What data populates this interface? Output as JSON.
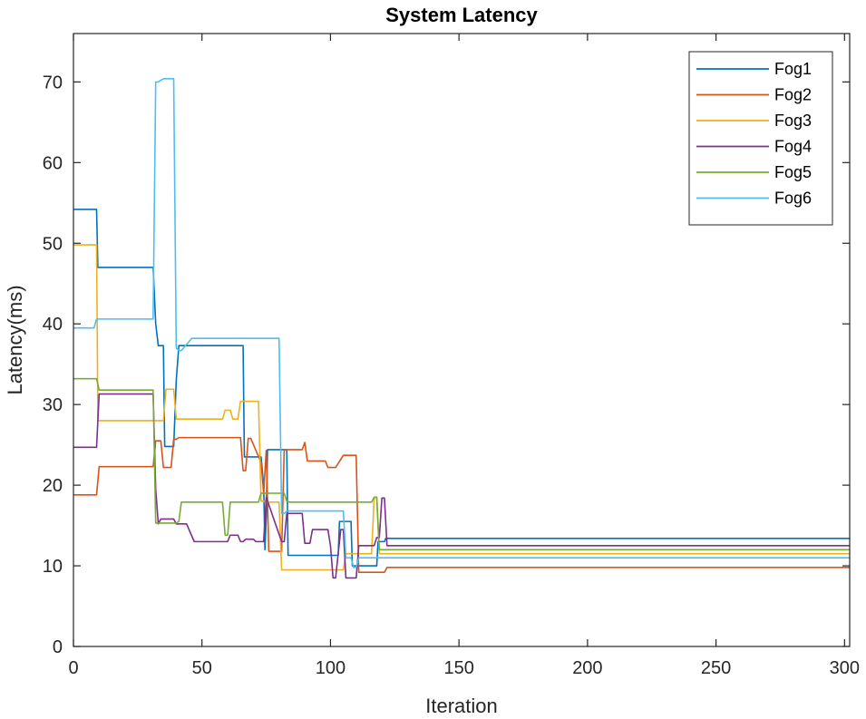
{
  "chart_data": {
    "type": "line",
    "title": "System Latency",
    "xlabel": "Iteration",
    "ylabel": "Latency(ms)",
    "xlim": [
      0,
      302
    ],
    "ylim": [
      0,
      76
    ],
    "xticks": [
      0,
      50,
      100,
      150,
      200,
      250,
      300
    ],
    "yticks": [
      0,
      10,
      20,
      30,
      40,
      50,
      60,
      70
    ],
    "grid": false,
    "legend_position": "top-right",
    "series": [
      {
        "name": "Fog1",
        "color": "#0072BD",
        "x": [
          0,
          9,
          9.5,
          31,
          32,
          33,
          35,
          35.5,
          39,
          40,
          41,
          41.5,
          66,
          66.5,
          73,
          74,
          74.5,
          75,
          75.5,
          76,
          76.5,
          83,
          83.5,
          103,
          103.5,
          108,
          108.5,
          118,
          118.5,
          121,
          121.5,
          302
        ],
        "y": [
          54.2,
          54.2,
          47,
          47,
          40,
          37.3,
          37.3,
          24.8,
          24.8,
          33,
          37.3,
          37.3,
          37.3,
          23.5,
          23.5,
          20,
          12,
          16,
          24.4,
          24.4,
          24.4,
          24.4,
          11.3,
          11.3,
          15.5,
          15.5,
          10,
          10,
          13,
          13,
          13.4,
          13.4
        ]
      },
      {
        "name": "Fog2",
        "color": "#D95319",
        "x": [
          0,
          9,
          10,
          31,
          32,
          34,
          35,
          38,
          39,
          40,
          41,
          65,
          66,
          67,
          68,
          69,
          73,
          74,
          75,
          76,
          81,
          82,
          89,
          90,
          91,
          92,
          98,
          99,
          102,
          105,
          108,
          110,
          111,
          112,
          121,
          122,
          302
        ],
        "y": [
          18.8,
          18.8,
          22.3,
          22.3,
          25.5,
          25.5,
          22.2,
          22.2,
          25.7,
          25.7,
          25.9,
          25.9,
          21.8,
          21.8,
          25.8,
          25.8,
          22.8,
          19,
          24.3,
          11.8,
          11.8,
          24.4,
          24.4,
          25.3,
          23,
          23,
          23,
          22.2,
          22.2,
          23.7,
          23.7,
          23.7,
          9.2,
          9.2,
          9.2,
          9.8,
          9.8
        ]
      },
      {
        "name": "Fog3",
        "color": "#EDB120",
        "x": [
          0,
          9,
          9.5,
          31,
          32,
          35,
          36,
          39,
          40,
          41,
          58,
          59,
          61,
          62,
          64,
          65,
          66,
          72,
          73,
          74,
          76,
          80,
          81,
          83,
          84,
          105,
          106,
          116,
          117,
          118,
          119,
          120,
          302
        ],
        "y": [
          49.8,
          49.8,
          28,
          28,
          28,
          28,
          31.9,
          31.9,
          28.2,
          28.2,
          28.2,
          29.3,
          29.3,
          28.2,
          28.2,
          30.4,
          30.4,
          30.4,
          18,
          18,
          17.9,
          17.9,
          9.5,
          9.5,
          9.5,
          9.5,
          11.5,
          11.5,
          18.5,
          18.5,
          11.5,
          11.5,
          11.5
        ]
      },
      {
        "name": "Fog4",
        "color": "#7E2F8E",
        "x": [
          0,
          9,
          10,
          31,
          32,
          33,
          34,
          39,
          40,
          44,
          47,
          48,
          60,
          61,
          64,
          65,
          66,
          67,
          70,
          71,
          74,
          75,
          81,
          82,
          83,
          89,
          90,
          92,
          93,
          99,
          100,
          101,
          102,
          104,
          105,
          106,
          107,
          108,
          110,
          111,
          112,
          117,
          118,
          119,
          120,
          121,
          122,
          302
        ],
        "y": [
          24.7,
          24.7,
          31.3,
          31.3,
          19.5,
          15.2,
          15.8,
          15.8,
          15.2,
          15.2,
          13,
          13,
          13,
          13.8,
          13.8,
          13,
          13,
          13.3,
          13.3,
          13,
          13,
          18.5,
          13,
          13,
          16.5,
          16.5,
          12.8,
          12.8,
          14.5,
          14.5,
          12.5,
          8.5,
          8.5,
          14.5,
          14.5,
          8.5,
          8.5,
          8.5,
          8.5,
          12.5,
          12.5,
          12.5,
          13.5,
          13.5,
          18.4,
          18.4,
          12.5,
          12.5
        ]
      },
      {
        "name": "Fog5",
        "color": "#77AC30",
        "x": [
          0,
          9,
          10,
          31,
          32,
          39,
          40,
          41,
          42,
          58,
          59,
          60,
          61,
          62,
          72,
          73,
          74,
          82,
          83,
          84,
          116,
          117,
          118,
          119,
          120,
          302
        ],
        "y": [
          33.2,
          33.2,
          31.8,
          31.8,
          15.3,
          15.3,
          15.3,
          15.5,
          17.9,
          17.9,
          13.8,
          13.8,
          17.9,
          17.9,
          17.9,
          19,
          19,
          19,
          18,
          17.9,
          17.9,
          18.5,
          18.5,
          12,
          12,
          12
        ]
      },
      {
        "name": "Fog6",
        "color": "#4DBEEE",
        "x": [
          0,
          8,
          9,
          30,
          31,
          32,
          33,
          35,
          36,
          39,
          40,
          41,
          42,
          46,
          47,
          80,
          81,
          82,
          83,
          103,
          104,
          105,
          106,
          108,
          109,
          110,
          111,
          112,
          113,
          302
        ],
        "y": [
          39.5,
          39.5,
          40.6,
          40.6,
          40.6,
          70,
          70,
          70.4,
          70.4,
          70.4,
          37,
          36.7,
          36.7,
          38.2,
          38.2,
          38.2,
          16.5,
          16.5,
          16.8,
          16.8,
          16.8,
          16.8,
          11,
          11,
          9.8,
          9.8,
          11,
          11,
          11,
          11
        ]
      }
    ]
  }
}
